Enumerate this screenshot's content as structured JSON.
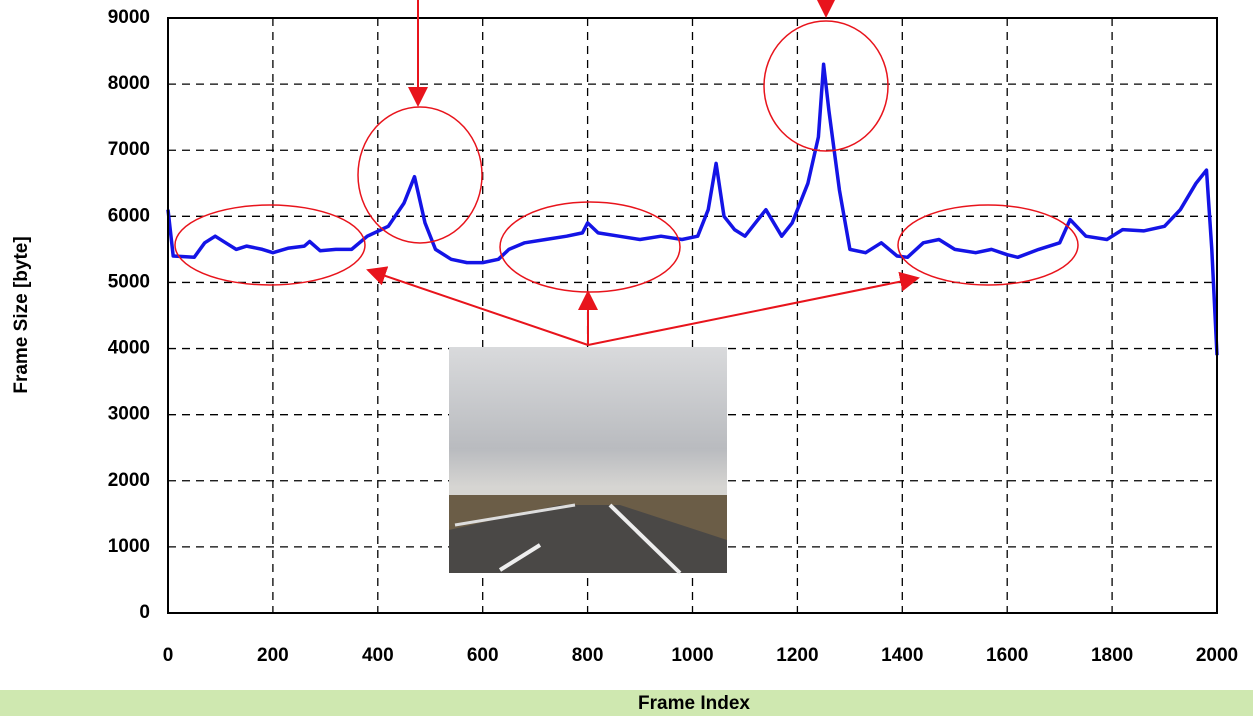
{
  "chart_data": {
    "type": "line",
    "x_label": "Frame Index",
    "y_label": "Frame Size [byte]",
    "x": [
      0,
      10,
      50,
      70,
      90,
      110,
      130,
      150,
      180,
      200,
      230,
      260,
      270,
      290,
      320,
      350,
      380,
      420,
      450,
      470,
      490,
      510,
      540,
      570,
      600,
      630,
      650,
      680,
      720,
      760,
      790,
      800,
      820,
      860,
      900,
      940,
      980,
      1010,
      1030,
      1045,
      1060,
      1080,
      1100,
      1120,
      1140,
      1170,
      1190,
      1220,
      1240,
      1250,
      1260,
      1280,
      1300,
      1330,
      1360,
      1390,
      1410,
      1440,
      1470,
      1500,
      1540,
      1570,
      1600,
      1620,
      1660,
      1700,
      1720,
      1750,
      1790,
      1820,
      1860,
      1900,
      1930,
      1960,
      1980,
      1990,
      2000
    ],
    "values": [
      6100,
      5400,
      5380,
      5600,
      5700,
      5600,
      5500,
      5550,
      5500,
      5450,
      5520,
      5550,
      5620,
      5480,
      5500,
      5500,
      5700,
      5850,
      6200,
      6600,
      5900,
      5500,
      5350,
      5300,
      5300,
      5350,
      5500,
      5600,
      5650,
      5700,
      5750,
      5900,
      5750,
      5700,
      5650,
      5700,
      5650,
      5700,
      6100,
      6800,
      6000,
      5800,
      5700,
      5900,
      6100,
      5700,
      5900,
      6500,
      7200,
      8300,
      7600,
      6400,
      5500,
      5450,
      5600,
      5400,
      5380,
      5600,
      5650,
      5500,
      5450,
      5500,
      5420,
      5380,
      5500,
      5600,
      5950,
      5700,
      5650,
      5800,
      5780,
      5850,
      6100,
      6500,
      6700,
      5500,
      3900
    ],
    "color": "#1414e6",
    "xlim": [
      0,
      2000
    ],
    "xticks": [
      0,
      200,
      400,
      600,
      800,
      1000,
      1200,
      1400,
      1600,
      1800,
      2000
    ],
    "ylim": [
      0,
      9000
    ],
    "yticks": [
      0,
      1000,
      2000,
      3000,
      4000,
      5000,
      6000,
      7000,
      8000,
      9000
    ],
    "grid": true
  }
}
